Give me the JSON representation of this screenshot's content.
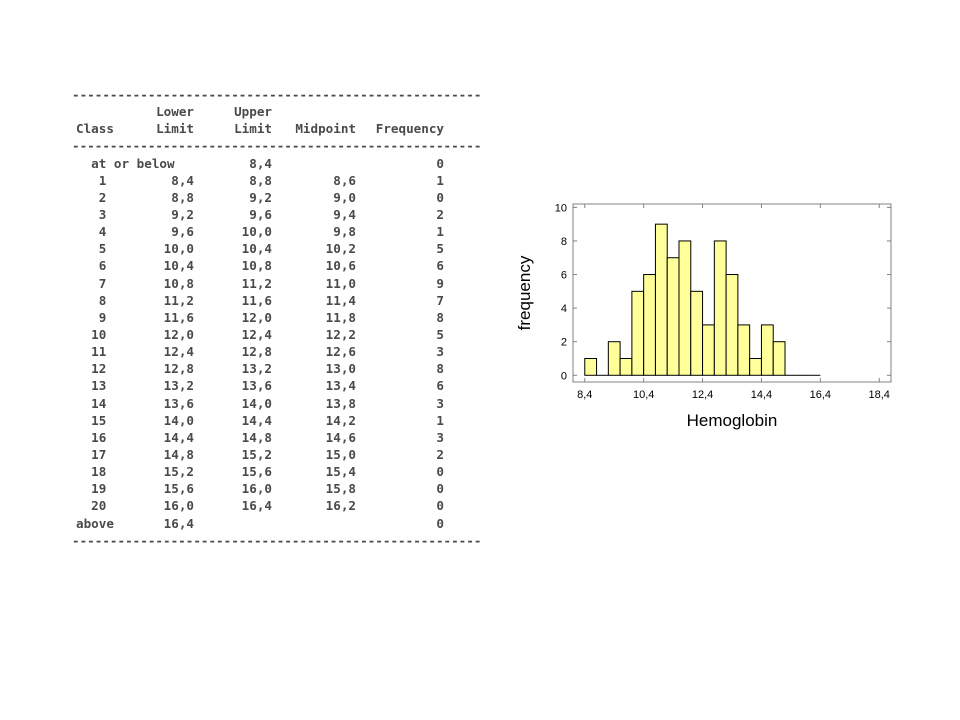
{
  "table": {
    "rule": "--------------------------------------------------------------------",
    "header1": {
      "class": "",
      "lower": "Lower",
      "upper": "Upper",
      "midpoint": "",
      "frequency": ""
    },
    "header2": {
      "class": "Class",
      "lower": "Limit",
      "upper": "Limit",
      "midpoint": "Midpoint",
      "frequency": "Frequency"
    },
    "rows": [
      {
        "class": "  at or below",
        "lower": "",
        "upper": "8,4",
        "midpoint": "",
        "frequency": "0"
      },
      {
        "class": "   1",
        "lower": "8,4",
        "upper": "8,8",
        "midpoint": "8,6",
        "frequency": "1"
      },
      {
        "class": "   2",
        "lower": "8,8",
        "upper": "9,2",
        "midpoint": "9,0",
        "frequency": "0"
      },
      {
        "class": "   3",
        "lower": "9,2",
        "upper": "9,6",
        "midpoint": "9,4",
        "frequency": "2"
      },
      {
        "class": "   4",
        "lower": "9,6",
        "upper": "10,0",
        "midpoint": "9,8",
        "frequency": "1"
      },
      {
        "class": "   5",
        "lower": "10,0",
        "upper": "10,4",
        "midpoint": "10,2",
        "frequency": "5"
      },
      {
        "class": "   6",
        "lower": "10,4",
        "upper": "10,8",
        "midpoint": "10,6",
        "frequency": "6"
      },
      {
        "class": "   7",
        "lower": "10,8",
        "upper": "11,2",
        "midpoint": "11,0",
        "frequency": "9"
      },
      {
        "class": "   8",
        "lower": "11,2",
        "upper": "11,6",
        "midpoint": "11,4",
        "frequency": "7"
      },
      {
        "class": "   9",
        "lower": "11,6",
        "upper": "12,0",
        "midpoint": "11,8",
        "frequency": "8"
      },
      {
        "class": "  10",
        "lower": "12,0",
        "upper": "12,4",
        "midpoint": "12,2",
        "frequency": "5"
      },
      {
        "class": "  11",
        "lower": "12,4",
        "upper": "12,8",
        "midpoint": "12,6",
        "frequency": "3"
      },
      {
        "class": "  12",
        "lower": "12,8",
        "upper": "13,2",
        "midpoint": "13,0",
        "frequency": "8"
      },
      {
        "class": "  13",
        "lower": "13,2",
        "upper": "13,6",
        "midpoint": "13,4",
        "frequency": "6"
      },
      {
        "class": "  14",
        "lower": "13,6",
        "upper": "14,0",
        "midpoint": "13,8",
        "frequency": "3"
      },
      {
        "class": "  15",
        "lower": "14,0",
        "upper": "14,4",
        "midpoint": "14,2",
        "frequency": "1"
      },
      {
        "class": "  16",
        "lower": "14,4",
        "upper": "14,8",
        "midpoint": "14,6",
        "frequency": "3"
      },
      {
        "class": "  17",
        "lower": "14,8",
        "upper": "15,2",
        "midpoint": "15,0",
        "frequency": "2"
      },
      {
        "class": "  18",
        "lower": "15,2",
        "upper": "15,6",
        "midpoint": "15,4",
        "frequency": "0"
      },
      {
        "class": "  19",
        "lower": "15,6",
        "upper": "16,0",
        "midpoint": "15,8",
        "frequency": "0"
      },
      {
        "class": "  20",
        "lower": "16,0",
        "upper": "16,4",
        "midpoint": "16,2",
        "frequency": "0"
      },
      {
        "class": "above",
        "lower": "16,4",
        "upper": "",
        "midpoint": "",
        "frequency": "0"
      }
    ]
  },
  "chart_data": {
    "type": "bar",
    "xlabel": "Hemoglobin",
    "ylabel": "frequency",
    "bin_edges": [
      8.4,
      8.8,
      9.2,
      9.6,
      10.0,
      10.4,
      10.8,
      11.2,
      11.6,
      12.0,
      12.4,
      12.8,
      13.2,
      13.6,
      14.0,
      14.4,
      14.8,
      15.2,
      15.6,
      16.0,
      16.4
    ],
    "values": [
      1,
      0,
      2,
      1,
      5,
      6,
      9,
      7,
      8,
      5,
      3,
      8,
      6,
      3,
      1,
      3,
      2,
      0,
      0,
      0
    ],
    "xlim": [
      8.0,
      18.8
    ],
    "ylim": [
      -0.4,
      10.2
    ],
    "xticks": [
      8.4,
      10.4,
      12.4,
      14.4,
      16.4,
      18.4
    ],
    "xtick_labels": [
      "8,4",
      "10,4",
      "12,4",
      "14,4",
      "16,4",
      "18,4"
    ],
    "yticks": [
      0,
      2,
      4,
      6,
      8,
      10
    ],
    "ytick_labels": [
      "0",
      "2",
      "4",
      "6",
      "8",
      "10"
    ],
    "grid": false,
    "colors": {
      "bar_fill": "#ffff99",
      "bar_stroke": "#000000",
      "frame": "#808080"
    }
  }
}
